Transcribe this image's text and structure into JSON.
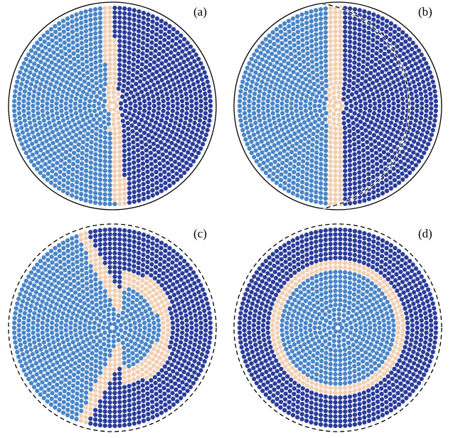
{
  "figure": {
    "colors": {
      "left_domain": "#4a86c8",
      "right_domain": "#2b3d9a",
      "wall": "#f2cfb2",
      "boundary": "#000000",
      "background": "#ffffff"
    },
    "panels": [
      {
        "id": "a",
        "label": "(a)",
        "boundary_style": "solid",
        "config": "tilted-wall"
      },
      {
        "id": "b",
        "label": "(b)",
        "boundary_style": "solid-dashed",
        "config": "vertical-wall"
      },
      {
        "id": "c",
        "label": "(c)",
        "boundary_style": "dashed",
        "config": "y-wall"
      },
      {
        "id": "d",
        "label": "(d)",
        "boundary_style": "dashed",
        "config": "ring-wall"
      }
    ]
  }
}
